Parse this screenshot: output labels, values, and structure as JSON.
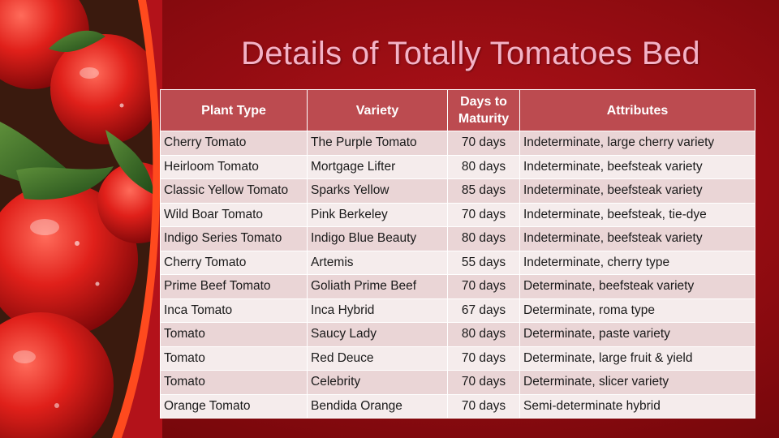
{
  "slide": {
    "title": "Details of Totally Tomatoes Bed",
    "background_color": "#8d0b10",
    "decoration": "tomato-photo"
  },
  "table": {
    "headers": [
      "Plant Type",
      "Variety",
      "Days to Maturity",
      "Attributes"
    ],
    "header_color": "#bc4b50",
    "rows": [
      {
        "plant_type": "Cherry Tomato",
        "variety": "The Purple Tomato",
        "days": "70 days",
        "attributes": "Indeterminate, large cherry variety"
      },
      {
        "plant_type": "Heirloom Tomato",
        "variety": "Mortgage Lifter",
        "days": "80 days",
        "attributes": "Indeterminate, beefsteak variety"
      },
      {
        "plant_type": "Classic Yellow Tomato",
        "variety": "Sparks Yellow",
        "days": "85 days",
        "attributes": "Indeterminate, beefsteak variety"
      },
      {
        "plant_type": "Wild Boar Tomato",
        "variety": "Pink Berkeley",
        "days": "70 days",
        "attributes": "Indeterminate, beefsteak, tie-dye"
      },
      {
        "plant_type": "Indigo Series Tomato",
        "variety": "Indigo Blue Beauty",
        "days": "80 days",
        "attributes": "Indeterminate, beefsteak variety"
      },
      {
        "plant_type": "Cherry Tomato",
        "variety": "Artemis",
        "days": "55 days",
        "attributes": "Indeterminate, cherry type"
      },
      {
        "plant_type": "Prime Beef Tomato",
        "variety": "Goliath Prime Beef",
        "days": "70 days",
        "attributes": "Determinate, beefsteak variety"
      },
      {
        "plant_type": "Inca Tomato",
        "variety": "Inca Hybrid",
        "days": "67 days",
        "attributes": "Determinate, roma type"
      },
      {
        "plant_type": "Tomato",
        "variety": "Saucy Lady",
        "days": "80 days",
        "attributes": "Determinate, paste variety"
      },
      {
        "plant_type": "Tomato",
        "variety": "Red Deuce",
        "days": "70 days",
        "attributes": "Determinate, large fruit & yield"
      },
      {
        "plant_type": "Tomato",
        "variety": "Celebrity",
        "days": "70 days",
        "attributes": "Determinate, slicer variety"
      },
      {
        "plant_type": "Orange Tomato",
        "variety": "Bendida Orange",
        "days": "70 days",
        "attributes": "Semi-determinate hybrid"
      }
    ]
  }
}
